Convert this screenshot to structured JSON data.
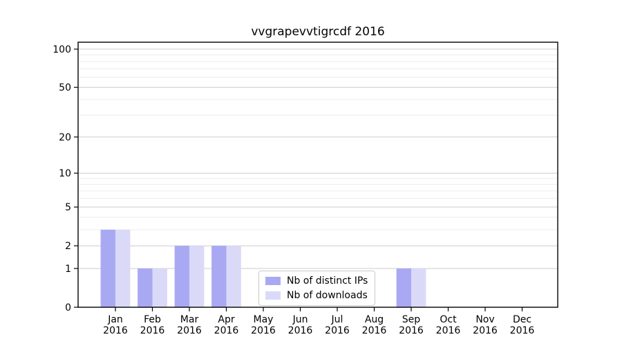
{
  "page": {
    "background": "#ffffff"
  },
  "chart_data": {
    "type": "bar",
    "title": "vvgrapevvtigrcdf 2016",
    "categories": [
      "Jan",
      "Feb",
      "Mar",
      "Apr",
      "May",
      "Jun",
      "Jul",
      "Aug",
      "Sep",
      "Oct",
      "Nov",
      "Dec"
    ],
    "x_year_label": "2016",
    "series": [
      {
        "name": "Nb of distinct IPs",
        "color": "#a9a9f3",
        "values": [
          3,
          1,
          2,
          2,
          0,
          0,
          0,
          0,
          1,
          0,
          0,
          0
        ]
      },
      {
        "name": "Nb of downloads",
        "color": "#dadaf8",
        "values": [
          3,
          1,
          2,
          2,
          0,
          0,
          0,
          0,
          1,
          0,
          0,
          0
        ]
      }
    ],
    "y_axis": {
      "scale": "log1p",
      "ticks": [
        0,
        1,
        2,
        5,
        10,
        20,
        50,
        100
      ],
      "minor_ticks": [
        3,
        4,
        6,
        7,
        8,
        9,
        30,
        40,
        60,
        70,
        80,
        90
      ],
      "ylim": [
        0,
        110
      ]
    },
    "x_axis": {
      "ticks_per_month": true
    },
    "grid": {
      "major_color": "#cccccc",
      "minor_color": "#ececec",
      "on": true
    },
    "legend": {
      "position": "lower center",
      "border_color": "#c9c9c9"
    },
    "colors": {
      "spine": "#000000",
      "text": "#000000"
    }
  }
}
